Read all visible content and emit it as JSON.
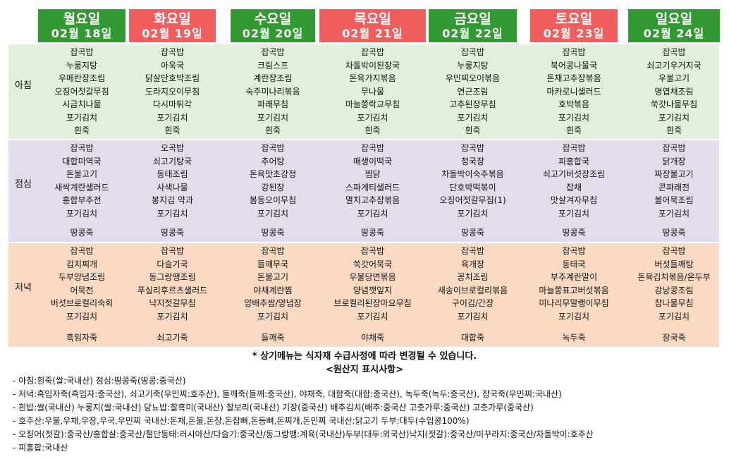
{
  "meal_labels": {
    "breakfast": "아침",
    "lunch": "점심",
    "dinner": "저녁"
  },
  "days": [
    {
      "day": "월요일",
      "date": "02월 18일",
      "header_color": "#339933",
      "breakfast": [
        "잡곡밥",
        "누룽지탕",
        "우메란장조림",
        "오징어젓갈무침",
        "시금치나물",
        "포기김치"
      ],
      "breakfast_soup": "흰죽",
      "lunch": [
        "잡곡밥",
        "대합미역국",
        "돈불고기",
        "새싹계란샐러드",
        "홍합부추전",
        "포기김치"
      ],
      "lunch_soup": "땅콩죽",
      "dinner": [
        "잡곡밥",
        "김치찌개",
        "두부양념조림",
        "어묵전",
        "버섯브로컬리숙회",
        "포기김치"
      ],
      "dinner_soup": "흑임자죽"
    },
    {
      "day": "화요일",
      "date": "02월 19일",
      "header_color": "#f25d5d",
      "breakfast": [
        "잡곡밥",
        "아욱국",
        "닭살단호박조림",
        "도라지오이무침",
        "다시마튀각",
        "포기김치"
      ],
      "breakfast_soup": "흰죽",
      "lunch": [
        "오곡밥",
        "쇠고기탕국",
        "동태조림",
        "사색나물",
        "봉지김 약과",
        "포기김치"
      ],
      "lunch_soup": "땅콩죽",
      "dinner": [
        "잡곡밥",
        "다슬기국",
        "동그랑땡조림",
        "푸실리후르츠샐러드",
        "낙지젓갈무침",
        "포기김치"
      ],
      "dinner_soup": "쇠고기죽"
    },
    {
      "day": "수요일",
      "date": "02월 20일",
      "header_color": "#339933",
      "breakfast": [
        "잡곡밥",
        "크림스프",
        "계란장조림",
        "숙주미나리볶음",
        "파래무침",
        "포기김치"
      ],
      "breakfast_soup": "흰죽",
      "lunch": [
        "잡곡밥",
        "추어탕",
        "돈육맛초강정",
        "강된장",
        "봄동오이무침",
        "포기김치"
      ],
      "lunch_soup": "땅콩죽",
      "dinner": [
        "잡곡밥",
        "들깨무국",
        "돈불고기",
        "야채계란찜",
        "양배추쌈/양념장",
        "포기김치"
      ],
      "dinner_soup": "들깨죽"
    },
    {
      "day": "목요일",
      "date": "02월 21일",
      "header_color": "#f25d5d",
      "breakfast": [
        "잡곡밥",
        "차돌박이된장국",
        "돈육가지볶음",
        "무나물",
        "마늘쫑락교무침",
        "포기김치"
      ],
      "breakfast_soup": "흰죽",
      "lunch": [
        "잡곡밥",
        "매생이떡국",
        "찜닭",
        "스파게티샐러드",
        "멸치고추장볶음",
        "포기김치"
      ],
      "lunch_soup": "땅콩죽",
      "dinner": [
        "잡곡밥",
        "쑥갓어묵국",
        "우불당면볶음",
        "양념깻잎지",
        "브로컬리된장마요무침",
        "포기김치"
      ],
      "dinner_soup": "야채죽"
    },
    {
      "day": "금요일",
      "date": "02월 22일",
      "header_color": "#339933",
      "breakfast": [
        "잡곡밥",
        "누룽지탕",
        "우민찌오이볶음",
        "연근조림",
        "고추된장무침",
        "포기김치"
      ],
      "breakfast_soup": "흰죽",
      "lunch": [
        "잡곡밥",
        "청국장",
        "차돌박이숙주볶음",
        "단호박떡볶이",
        "오징어젓갈무침(1)",
        "포기김치"
      ],
      "lunch_soup": "땅콩죽",
      "dinner": [
        "잡곡밥",
        "육개장",
        "꽁치조림",
        "새송이브로컬리볶음",
        "구이김/간장",
        "포기김치"
      ],
      "dinner_soup": "대합죽"
    },
    {
      "day": "토요일",
      "date": "02월 23일",
      "header_color": "#f25d5d",
      "breakfast": [
        "잡곡밥",
        "북어콩나물국",
        "돈채고추장볶음",
        "마카로니샐러드",
        "호박볶음",
        "포기김치"
      ],
      "breakfast_soup": "흰죽",
      "lunch": [
        "잡곡밥",
        "피홍합국",
        "쇠고기버섯장조림",
        "잡채",
        "맛살겨자무침",
        "포기김치"
      ],
      "lunch_soup": "땅콩죽",
      "dinner": [
        "잡곡밥",
        "동태국",
        "부추계란말이",
        "마늘쫑표고버섯볶음",
        "미나리무말랭이무침",
        "포기김치"
      ],
      "dinner_soup": "녹두죽"
    },
    {
      "day": "일요일",
      "date": "02월 24일",
      "header_color": "#339933",
      "breakfast": [
        "잡곡밥",
        "쇠고기우거지국",
        "우불고기",
        "명엽채조림",
        "쑥갓나물무침",
        "포기김치"
      ],
      "breakfast_soup": "흰죽",
      "lunch": [
        "잡곡밥",
        "닭개장",
        "짜장불고기",
        "콘파래전",
        "볼어묵조림",
        "포기김치"
      ],
      "lunch_soup": "땅콩죽",
      "dinner": [
        "잡곡밥",
        "버섯들깨탕",
        "돈육김치볶음/온두부",
        "강낭콩조림",
        "참나물무침",
        "포기김치"
      ],
      "dinner_soup": "장국죽"
    }
  ],
  "notice": "* 상기메뉴는 식자재 수급사정에 따라 변경될 수 있습니다.",
  "origin_title": "<원산지 표시사항>",
  "origin_lines": [
    "- 아침:흰죽(쌀:국내산) 점심:땅콩죽(땅콩:중국산)",
    "- 저녁:흑임자죽(흑임자:중국산), 쇠고기죽(우민찌:호주산), 들깨죽(들깨:중국산), 야채죽, 대합죽(대합:중국산), 녹두죽(녹두:중국산), 장국죽(우민찌:국내산)",
    "- 흰밥:쌀(국내산) 누룽지(쌀:국내산) 당뇨밥:찰흑미(국내산) 찰보리(국내산) 기장(중국산) 배추김치(배추:중국산 고춧가루:중국산) 고춧가루(중국산)",
    "- 호주산:우불,우채,우장,우국,우민찌 국내산:돈채,돈불,돈장,돈잡뼈,돈등뼈,돈찌개,돈민찌 국내산:닭고기 두부:대두(수입콩100%)",
    "- 오징어(젓갈):중국산/홍합살:중국산/절단동태:러시아산/다슬기:중국산/동그랑땡:계육(국내산)두부(대두:외국산)낙지(젓갈):중국산/미꾸라지:중국산/차돌박이:호주산",
    "- 피홍합:국내산"
  ]
}
